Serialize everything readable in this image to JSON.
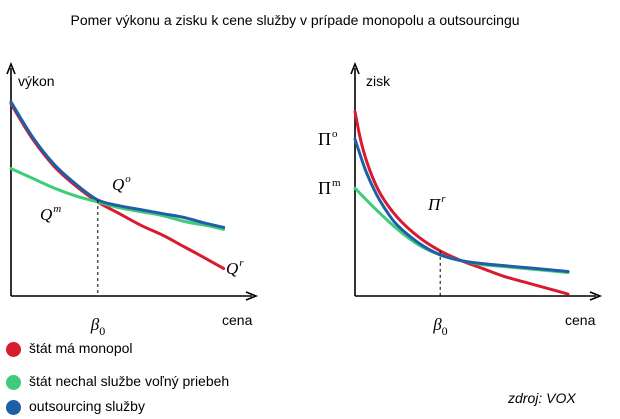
{
  "title": "Pomer výkonu a zisku k cene služby v prípade monopolu a outsourcingu",
  "colors": {
    "monopoly": "#d81b2e",
    "free": "#3fcc7a",
    "outsourcing": "#1e5fa8"
  },
  "chart_data": [
    {
      "type": "line",
      "ylabel": "výkon",
      "xlabel": "cena",
      "x_tick_label": "β",
      "x_tick_sub": "0",
      "x_tick_at": 0.4,
      "xlim": [
        0,
        1
      ],
      "ylim": [
        0,
        1
      ],
      "curve_labels": [
        {
          "base": "Q",
          "sup": "o",
          "series": "outsourcing"
        },
        {
          "base": "Q",
          "sup": "m",
          "series": "free"
        },
        {
          "base": "Q",
          "sup": "r",
          "series": "monopoly"
        }
      ],
      "series": [
        {
          "key": "monopoly",
          "x": [
            0,
            0.1,
            0.2,
            0.3,
            0.4,
            0.5,
            0.6,
            0.7,
            0.8,
            0.9,
            0.98
          ],
          "y": [
            0.98,
            0.8,
            0.66,
            0.56,
            0.48,
            0.42,
            0.36,
            0.31,
            0.25,
            0.19,
            0.14
          ]
        },
        {
          "key": "free",
          "x": [
            0,
            0.1,
            0.2,
            0.3,
            0.4,
            0.5,
            0.6,
            0.7,
            0.8,
            0.9,
            0.98
          ],
          "y": [
            0.65,
            0.6,
            0.55,
            0.51,
            0.48,
            0.45,
            0.43,
            0.41,
            0.38,
            0.36,
            0.34
          ]
        },
        {
          "key": "outsourcing",
          "x": [
            0,
            0.1,
            0.2,
            0.3,
            0.4,
            0.5,
            0.6,
            0.7,
            0.8,
            0.9,
            0.98
          ],
          "y": [
            0.99,
            0.81,
            0.67,
            0.57,
            0.49,
            0.46,
            0.44,
            0.42,
            0.4,
            0.37,
            0.35
          ]
        }
      ]
    },
    {
      "type": "line",
      "ylabel": "zisk",
      "xlabel": "cena",
      "x_tick_label": "β",
      "x_tick_sub": "0",
      "x_tick_at": 0.4,
      "xlim": [
        0,
        1
      ],
      "ylim": [
        0,
        1
      ],
      "y_tick_labels": [
        {
          "base": "Π",
          "sup": "o",
          "at": 0.8
        },
        {
          "base": "Π",
          "sup": "m",
          "at": 0.55
        }
      ],
      "curve_labels": [
        {
          "base": "Π",
          "sup": "r",
          "series": "monopoly"
        }
      ],
      "series": [
        {
          "key": "monopoly",
          "x": [
            0,
            0.03,
            0.07,
            0.12,
            0.2,
            0.3,
            0.4,
            0.5,
            0.6,
            0.7,
            0.8,
            0.9,
            1.0
          ],
          "y": [
            0.94,
            0.78,
            0.64,
            0.52,
            0.4,
            0.3,
            0.23,
            0.18,
            0.14,
            0.1,
            0.07,
            0.04,
            0.01
          ]
        },
        {
          "key": "free",
          "x": [
            0,
            0.1,
            0.2,
            0.3,
            0.4,
            0.5,
            0.6,
            0.7,
            0.8,
            0.9,
            1.0
          ],
          "y": [
            0.55,
            0.44,
            0.34,
            0.26,
            0.21,
            0.18,
            0.16,
            0.15,
            0.14,
            0.13,
            0.12
          ]
        },
        {
          "key": "outsourcing",
          "x": [
            0,
            0.05,
            0.1,
            0.15,
            0.2,
            0.3,
            0.4,
            0.5,
            0.6,
            0.7,
            0.8,
            0.9,
            1.0
          ],
          "y": [
            0.8,
            0.64,
            0.52,
            0.43,
            0.36,
            0.27,
            0.21,
            0.18,
            0.165,
            0.155,
            0.145,
            0.135,
            0.125
          ]
        }
      ]
    }
  ],
  "legend": [
    {
      "key": "monopoly",
      "label": "štát má monopol"
    },
    {
      "key": "free",
      "label": "štát nechal službe voľný priebeh"
    },
    {
      "key": "outsourcing",
      "label": "outsourcing služby"
    }
  ],
  "source": "zdroj: VOX"
}
